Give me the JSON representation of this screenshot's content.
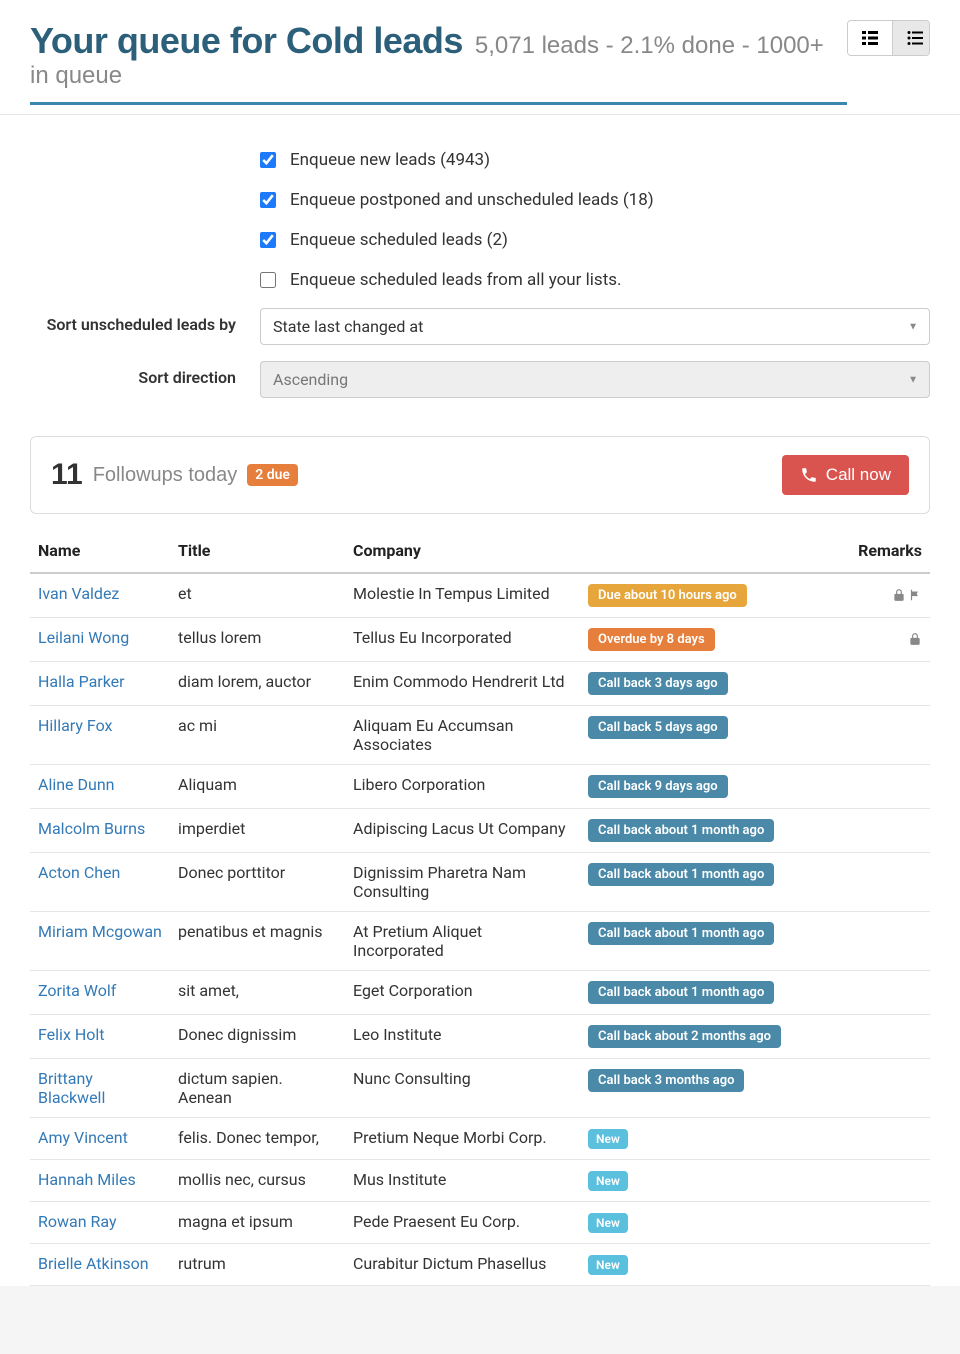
{
  "header": {
    "title": "Your queue for Cold leads",
    "subtitle": "5,071 leads - 2.1% done - 1000+ in queue"
  },
  "filters": {
    "checkboxes": [
      {
        "label": "Enqueue new leads (4943)",
        "checked": true
      },
      {
        "label": "Enqueue postponed and unscheduled leads (18)",
        "checked": true
      },
      {
        "label": "Enqueue scheduled leads (2)",
        "checked": true
      },
      {
        "label": "Enqueue scheduled leads from all your lists.",
        "checked": false
      }
    ],
    "sort_by_label": "Sort unscheduled leads by",
    "sort_by_value": "State last changed at",
    "sort_dir_label": "Sort direction",
    "sort_dir_value": "Ascending"
  },
  "followups": {
    "count": "11",
    "text": "Followups today",
    "due_badge": "2 due",
    "call_now": "Call now"
  },
  "table": {
    "headers": {
      "name": "Name",
      "title": "Title",
      "company": "Company",
      "remarks": "Remarks"
    }
  },
  "leads": [
    {
      "name": "Ivan Valdez",
      "title": "et",
      "company": "Molestie In Tempus Limited",
      "status": "Due about 10 hours ago",
      "status_class": "badge-due",
      "lock": true,
      "flag": true
    },
    {
      "name": "Leilani Wong",
      "title": "tellus lorem",
      "company": "Tellus Eu Incorporated",
      "status": "Overdue by 8 days",
      "status_class": "badge-overdue",
      "lock": true,
      "flag": false
    },
    {
      "name": "Halla Parker",
      "title": "diam lorem, auctor",
      "company": "Enim Commodo Hendrerit Ltd",
      "status": "Call back 3 days ago",
      "status_class": "badge-callback"
    },
    {
      "name": "Hillary Fox",
      "title": "ac mi",
      "company": "Aliquam Eu Accumsan Associates",
      "status": "Call back 5 days ago",
      "status_class": "badge-callback"
    },
    {
      "name": "Aline Dunn",
      "title": "Aliquam",
      "company": "Libero Corporation",
      "status": "Call back 9 days ago",
      "status_class": "badge-callback"
    },
    {
      "name": "Malcolm Burns",
      "title": "imperdiet",
      "company": "Adipiscing Lacus Ut Company",
      "status": "Call back about 1 month ago",
      "status_class": "badge-callback"
    },
    {
      "name": "Acton Chen",
      "title": "Donec porttitor",
      "company": "Dignissim Pharetra Nam Consulting",
      "status": "Call back about 1 month ago",
      "status_class": "badge-callback"
    },
    {
      "name": "Miriam Mcgowan",
      "title": "penatibus et magnis",
      "company": "At Pretium Aliquet Incorporated",
      "status": "Call back about 1 month ago",
      "status_class": "badge-callback"
    },
    {
      "name": "Zorita Wolf",
      "title": "sit amet,",
      "company": "Eget Corporation",
      "status": "Call back about 1 month ago",
      "status_class": "badge-callback"
    },
    {
      "name": "Felix Holt",
      "title": "Donec dignissim",
      "company": "Leo Institute",
      "status": "Call back about 2 months ago",
      "status_class": "badge-callback"
    },
    {
      "name": "Brittany Blackwell",
      "title": "dictum sapien. Aenean",
      "company": "Nunc Consulting",
      "status": "Call back 3 months ago",
      "status_class": "badge-callback"
    },
    {
      "name": "Amy Vincent",
      "title": "felis. Donec tempor,",
      "company": "Pretium Neque Morbi Corp.",
      "status": "New",
      "status_class": "badge-new"
    },
    {
      "name": "Hannah Miles",
      "title": "mollis nec, cursus",
      "company": "Mus Institute",
      "status": "New",
      "status_class": "badge-new"
    },
    {
      "name": "Rowan Ray",
      "title": "magna et ipsum",
      "company": "Pede Praesent Eu Corp.",
      "status": "New",
      "status_class": "badge-new"
    },
    {
      "name": "Brielle Atkinson",
      "title": "rutrum",
      "company": "Curabitur Dictum Phasellus",
      "status": "New",
      "status_class": "badge-new"
    }
  ]
}
